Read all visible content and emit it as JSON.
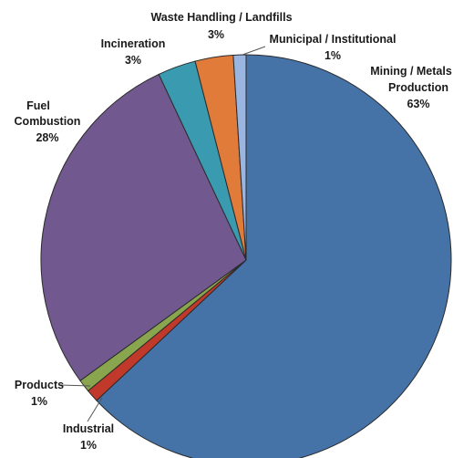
{
  "chart_data": {
    "type": "pie",
    "title": "",
    "slices": [
      {
        "name": "Mining / Metals Production",
        "value": 63,
        "label": "63%",
        "color": "#4572A7"
      },
      {
        "name": "Industrial",
        "value": 1,
        "label": "1%",
        "color": "#C0392B"
      },
      {
        "name": "Products",
        "value": 1,
        "label": "1%",
        "color": "#89A54E"
      },
      {
        "name": "Fuel Combustion",
        "value": 28,
        "label": "28%",
        "color": "#71588F"
      },
      {
        "name": "Incineration",
        "value": 3,
        "label": "3%",
        "color": "#3A9AAF"
      },
      {
        "name": "Waste Handling / Landfills",
        "value": 3,
        "label": "3%",
        "color": "#E07B39"
      },
      {
        "name": "Municipal / Institutional",
        "value": 1,
        "label": "1%",
        "color": "#9AB5E0"
      }
    ]
  }
}
